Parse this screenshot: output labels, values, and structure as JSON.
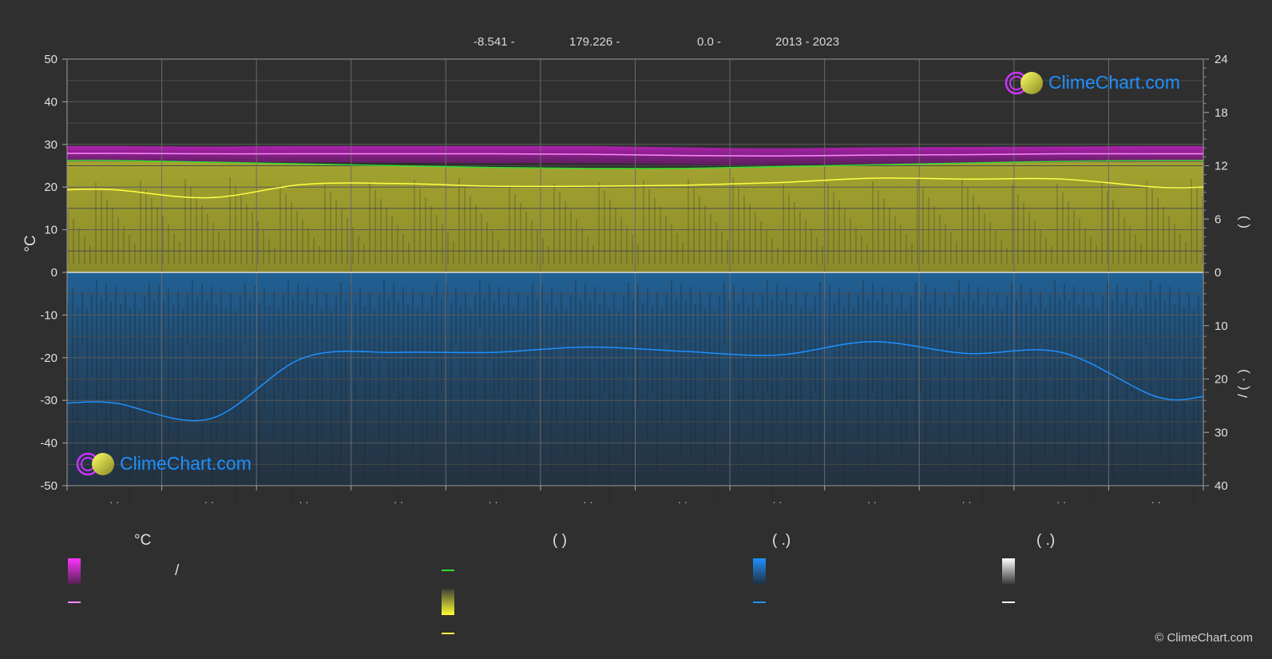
{
  "header": {
    "latitude": "-8.541 -",
    "longitude": "179.226 -",
    "elevation": "0.0 -",
    "period": "2013 - 2023"
  },
  "brand": {
    "text": "ClimeChart.com"
  },
  "copyright": "© ClimeChart.com",
  "colors": {
    "background": "#2f2f2f",
    "grid": "#5a5a5a",
    "temp_band": "#e020e0",
    "temp_mean": "#ff88ff",
    "daylight": "#33dd33",
    "sunshine_band": "#b8b830",
    "sunshine_mean": "#ffff44",
    "precip_band": "#1e6aa8",
    "precip_mean": "#1e90ff",
    "brand": "#1e90ff"
  },
  "legend": {
    "temp_head": "°C",
    "sun_head": "(          )",
    "rain_head": "(   .)",
    "snow_head": "(   .)",
    "temp_range_sep": "/"
  },
  "chart_data": {
    "type": "line",
    "x": [
      1,
      2,
      3,
      4,
      5,
      6,
      7,
      8,
      9,
      10,
      11,
      12
    ],
    "month_labels": [
      "· ·",
      "· ·",
      "· ·",
      "· ·",
      "· ·",
      "· ·",
      "· ·",
      "· ·",
      "· ·",
      "· ·",
      "· ·",
      "· ·"
    ],
    "yleft": {
      "label": "°C",
      "ticks": [
        50,
        40,
        30,
        20,
        10,
        0,
        -10,
        -20,
        -30,
        -40,
        -50
      ],
      "lim": [
        -50,
        50
      ]
    },
    "yright_top": {
      "ticks": [
        24,
        18,
        12,
        6,
        0
      ],
      "lim": [
        0,
        24
      ],
      "label": "(     )"
    },
    "yright_bottom": {
      "ticks": [
        0,
        10,
        20,
        30,
        40
      ],
      "lim": [
        0,
        40
      ],
      "label": "/     (  ·  )"
    },
    "series": [
      {
        "key": "temp_max",
        "values": [
          29.6,
          29.5,
          29.6,
          29.6,
          29.6,
          29.6,
          29.3,
          29.1,
          29.3,
          29.4,
          29.5,
          29.6
        ]
      },
      {
        "key": "temp_min",
        "values": [
          26.0,
          25.9,
          25.8,
          25.7,
          25.6,
          25.6,
          25.3,
          25.2,
          25.4,
          25.6,
          25.8,
          25.9
        ]
      },
      {
        "key": "temp_mean",
        "values": [
          27.9,
          27.8,
          27.8,
          27.8,
          27.8,
          27.7,
          27.4,
          27.3,
          27.5,
          27.6,
          27.8,
          27.8
        ]
      },
      {
        "key": "daylight",
        "values": [
          12.6,
          12.4,
          12.2,
          12.0,
          11.8,
          11.7,
          11.7,
          11.9,
          12.1,
          12.3,
          12.5,
          12.6
        ]
      },
      {
        "key": "sunshine",
        "values": [
          9.3,
          8.4,
          9.9,
          10.0,
          9.7,
          9.7,
          9.8,
          10.1,
          10.6,
          10.5,
          10.5,
          9.6
        ]
      },
      {
        "key": "precipitation",
        "values": [
          24.5,
          27.5,
          16.0,
          15.0,
          15.0,
          14.0,
          14.8,
          15.5,
          13.0,
          15.2,
          15.0,
          23.3
        ]
      }
    ]
  }
}
